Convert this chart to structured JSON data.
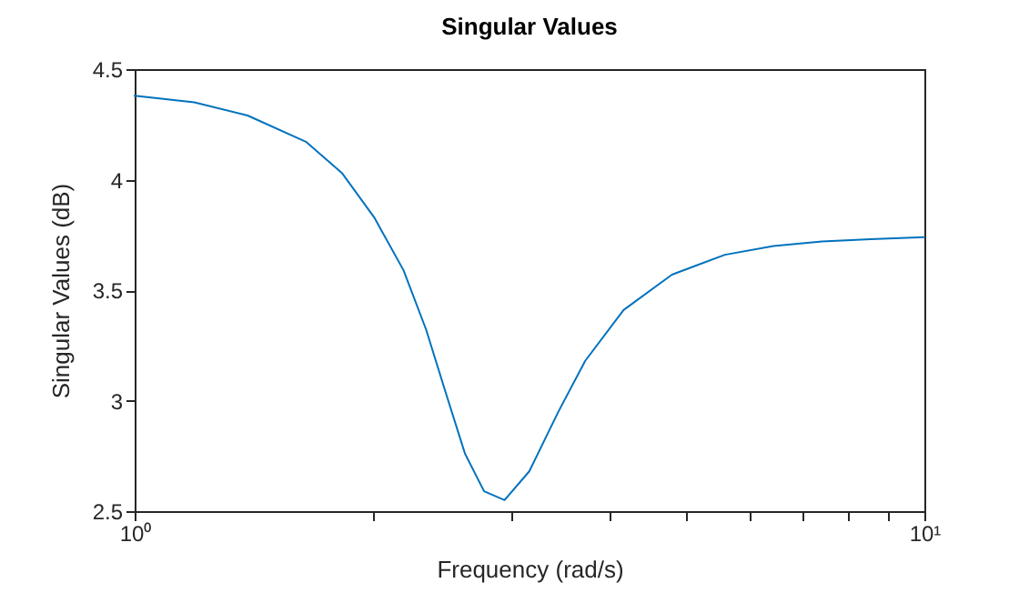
{
  "chart_data": {
    "type": "line",
    "title": "Singular Values",
    "xlabel": "Frequency (rad/s)",
    "ylabel": "Singular Values (dB)",
    "log": "x",
    "x": [
      1.0,
      1.19,
      1.39,
      1.65,
      1.83,
      2.01,
      2.19,
      2.34,
      2.48,
      2.62,
      2.77,
      2.94,
      3.16,
      3.44,
      3.72,
      4.16,
      4.79,
      5.59,
      6.44,
      7.42,
      8.54,
      10
    ],
    "series": [
      {
        "color": "#0072bd",
        "values": [
          4.38,
          4.35,
          4.29,
          4.17,
          4.03,
          3.83,
          3.59,
          3.32,
          3.03,
          2.76,
          2.59,
          2.55,
          2.68,
          2.95,
          3.18,
          3.41,
          3.57,
          3.66,
          3.7,
          3.72,
          3.73,
          3.74
        ]
      }
    ],
    "xlim": [
      1,
      10
    ],
    "xticks": [
      {
        "value": 1,
        "label": "10⁰"
      },
      {
        "value": 2,
        "label": null
      },
      {
        "value": 3,
        "label": null
      },
      {
        "value": 4,
        "label": null
      },
      {
        "value": 5,
        "label": null
      },
      {
        "value": 6,
        "label": null
      },
      {
        "value": 7,
        "label": null
      },
      {
        "value": 8,
        "label": null
      },
      {
        "value": 9,
        "label": null
      },
      {
        "value": 10,
        "label": "10¹"
      }
    ],
    "ylim": [
      2.5,
      4.5
    ],
    "yticks": [
      2.5,
      3,
      3.5,
      4,
      4.5
    ],
    "grid": false
  }
}
